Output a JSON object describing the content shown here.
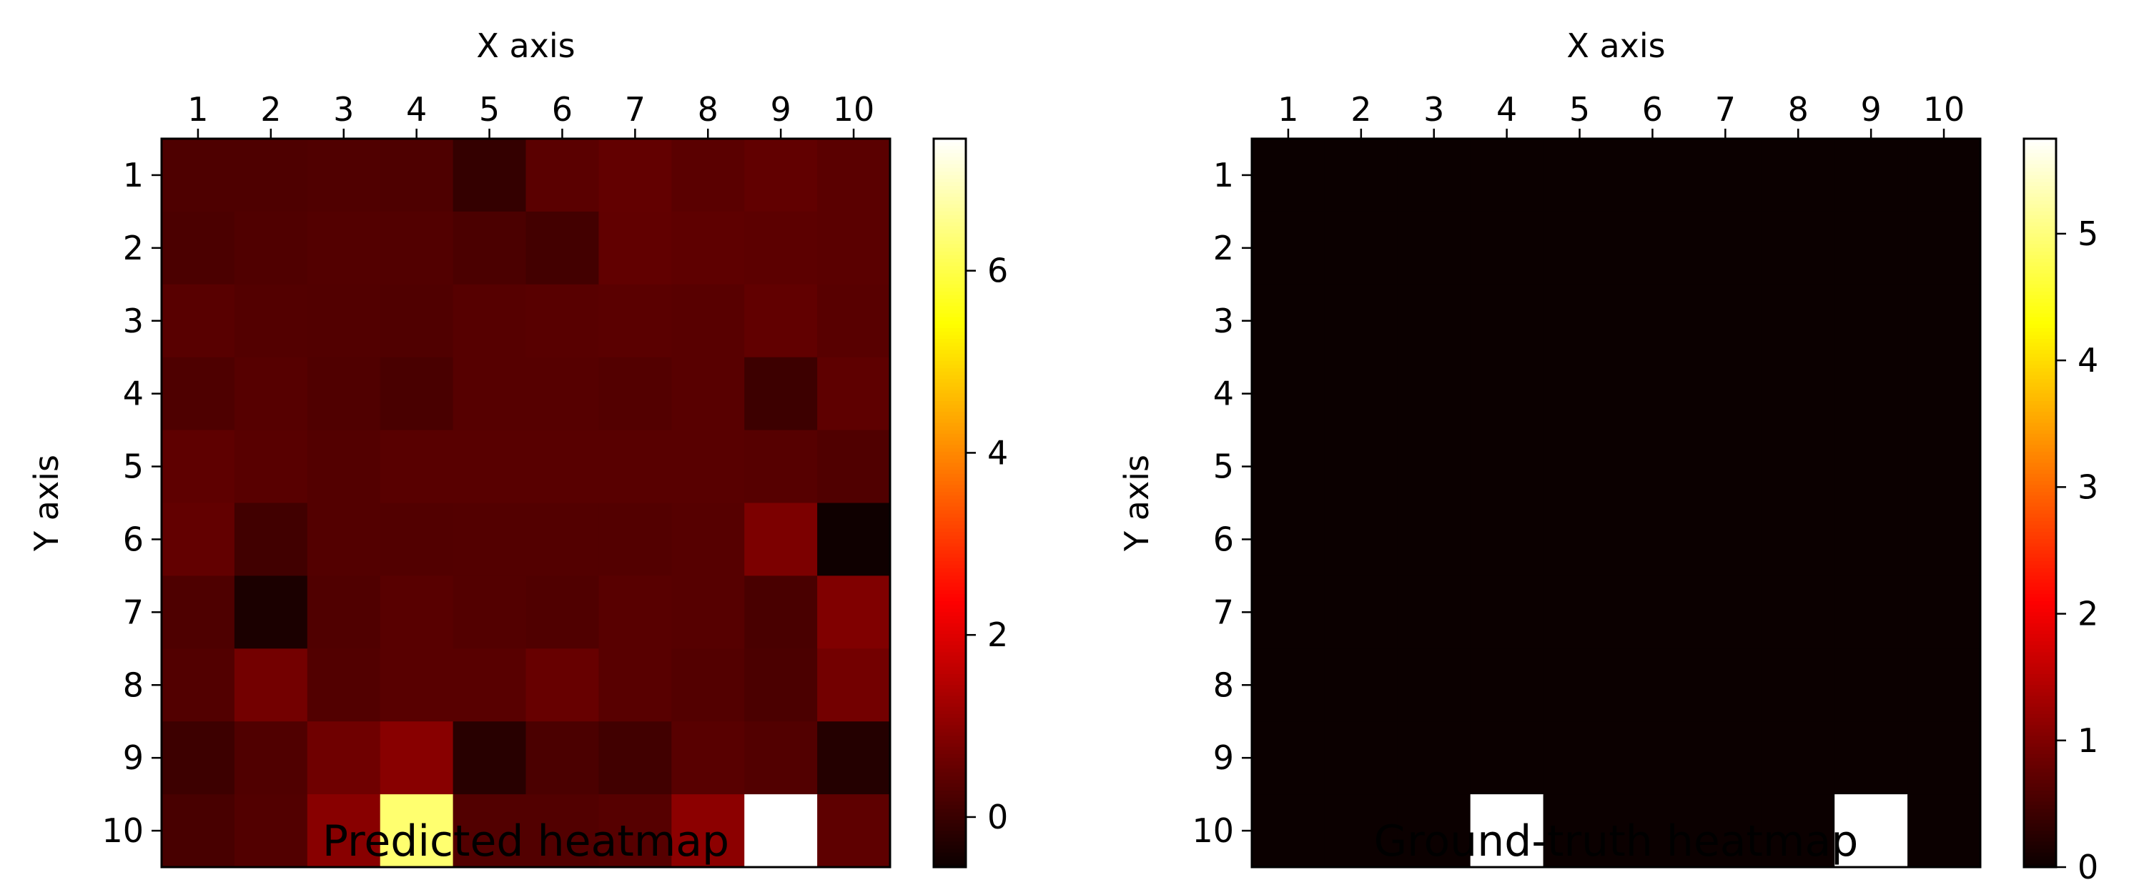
{
  "chart_data": [
    {
      "type": "heatmap",
      "title": "Predicted heatmap",
      "xlabel": "X axis",
      "ylabel": "Y axis",
      "x_ticks": [
        "1",
        "2",
        "3",
        "4",
        "5",
        "6",
        "7",
        "8",
        "9",
        "10"
      ],
      "y_ticks": [
        "1",
        "2",
        "3",
        "4",
        "5",
        "6",
        "7",
        "8",
        "9",
        "10"
      ],
      "colormap": "hot",
      "colorbar": {
        "range": [
          -0.55,
          7.45
        ],
        "ticks": [
          0,
          2,
          4,
          6
        ]
      },
      "grid": false,
      "values": [
        [
          0.25,
          0.25,
          0.28,
          0.25,
          -0.05,
          0.4,
          0.5,
          0.4,
          0.48,
          0.4
        ],
        [
          0.22,
          0.28,
          0.32,
          0.3,
          0.22,
          0.12,
          0.48,
          0.45,
          0.42,
          0.4
        ],
        [
          0.38,
          0.32,
          0.3,
          0.28,
          0.35,
          0.38,
          0.4,
          0.38,
          0.48,
          0.38
        ],
        [
          0.25,
          0.35,
          0.28,
          0.2,
          0.35,
          0.35,
          0.32,
          0.38,
          0.05,
          0.45
        ],
        [
          0.45,
          0.38,
          0.32,
          0.38,
          0.38,
          0.38,
          0.38,
          0.38,
          0.35,
          0.28
        ],
        [
          0.5,
          0.1,
          0.32,
          0.3,
          0.32,
          0.32,
          0.32,
          0.35,
          0.8,
          -0.5
        ],
        [
          0.25,
          -0.35,
          0.28,
          0.38,
          0.32,
          0.28,
          0.38,
          0.35,
          0.2,
          0.85
        ],
        [
          0.3,
          0.7,
          0.3,
          0.38,
          0.38,
          0.55,
          0.38,
          0.32,
          0.22,
          0.7
        ],
        [
          0.05,
          0.28,
          0.65,
          0.95,
          -0.2,
          0.22,
          0.1,
          0.38,
          0.3,
          -0.25
        ],
        [
          0.18,
          0.3,
          0.95,
          6.3,
          0.3,
          0.3,
          0.35,
          1.0,
          7.45,
          0.45
        ]
      ]
    },
    {
      "type": "heatmap",
      "title": "Ground-truth heatmap",
      "xlabel": "X axis",
      "ylabel": "Y axis",
      "x_ticks": [
        "1",
        "2",
        "3",
        "4",
        "5",
        "6",
        "7",
        "8",
        "9",
        "10"
      ],
      "y_ticks": [
        "1",
        "2",
        "3",
        "4",
        "5",
        "6",
        "7",
        "8",
        "9",
        "10"
      ],
      "colormap": "hot",
      "colorbar": {
        "range": [
          0,
          5.75
        ],
        "ticks": [
          0,
          1,
          2,
          3,
          4,
          5
        ]
      },
      "grid": false,
      "values": [
        [
          0,
          0,
          0,
          0,
          0,
          0,
          0,
          0,
          0,
          0
        ],
        [
          0,
          0,
          0,
          0,
          0,
          0,
          0,
          0,
          0,
          0
        ],
        [
          0,
          0,
          0,
          0,
          0,
          0,
          0,
          0,
          0,
          0
        ],
        [
          0,
          0,
          0,
          0,
          0,
          0,
          0,
          0,
          0,
          0
        ],
        [
          0,
          0,
          0,
          0,
          0,
          0,
          0,
          0,
          0,
          0
        ],
        [
          0,
          0,
          0,
          0,
          0,
          0,
          0,
          0,
          0,
          0
        ],
        [
          0,
          0,
          0,
          0,
          0,
          0,
          0,
          0,
          0,
          0
        ],
        [
          0,
          0,
          0,
          0,
          0,
          0,
          0,
          0,
          0,
          0
        ],
        [
          0,
          0,
          0,
          0,
          0,
          0,
          0,
          0,
          0,
          0
        ],
        [
          0,
          0,
          0,
          5.75,
          0,
          0,
          0,
          0,
          5.75,
          0
        ]
      ]
    }
  ]
}
